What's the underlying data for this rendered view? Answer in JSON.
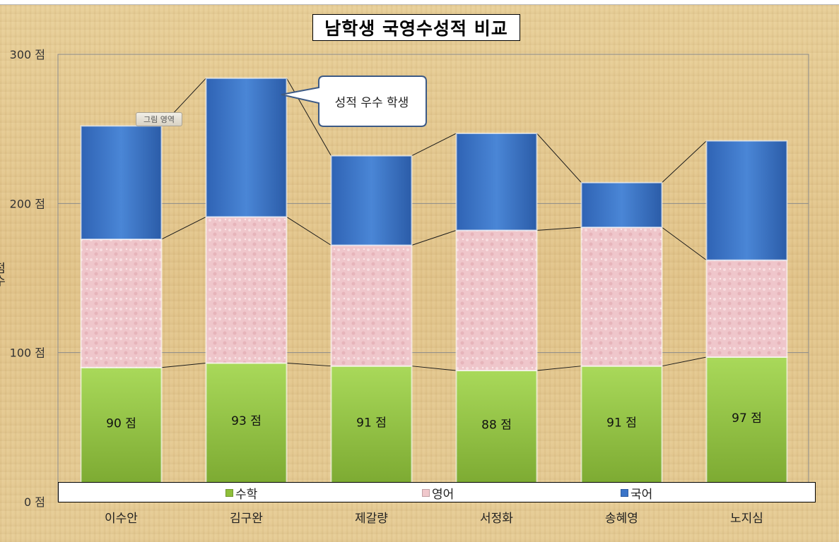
{
  "chart_data": {
    "type": "bar",
    "stacked": true,
    "title": "남학생 국영수성적 비교",
    "ylabel": "점수",
    "xlabel": "",
    "ylim": [
      0,
      300
    ],
    "y_ticks": [
      "0 점",
      "100 점",
      "200 점",
      "300 점"
    ],
    "categories": [
      "이수안",
      "김구완",
      "제갈량",
      "서정화",
      "송혜영",
      "노지심"
    ],
    "series": [
      {
        "name": "수학",
        "values": [
          90,
          93,
          91,
          88,
          91,
          97
        ],
        "color": "#8fbf3a",
        "data_labels": [
          "90 점",
          "93 점",
          "91 점",
          "88 점",
          "91 점",
          "97 점"
        ]
      },
      {
        "name": "영어",
        "values": [
          86,
          98,
          81,
          94,
          93,
          65
        ],
        "color": "#f0c8cc"
      },
      {
        "name": "국어",
        "values": [
          76,
          93,
          60,
          65,
          30,
          80
        ],
        "color": "#3a74c8"
      }
    ],
    "series_lines": true,
    "grid": true,
    "legend": "bottom",
    "annotation": "성적 우수 학생",
    "tag": "그림 영역"
  }
}
